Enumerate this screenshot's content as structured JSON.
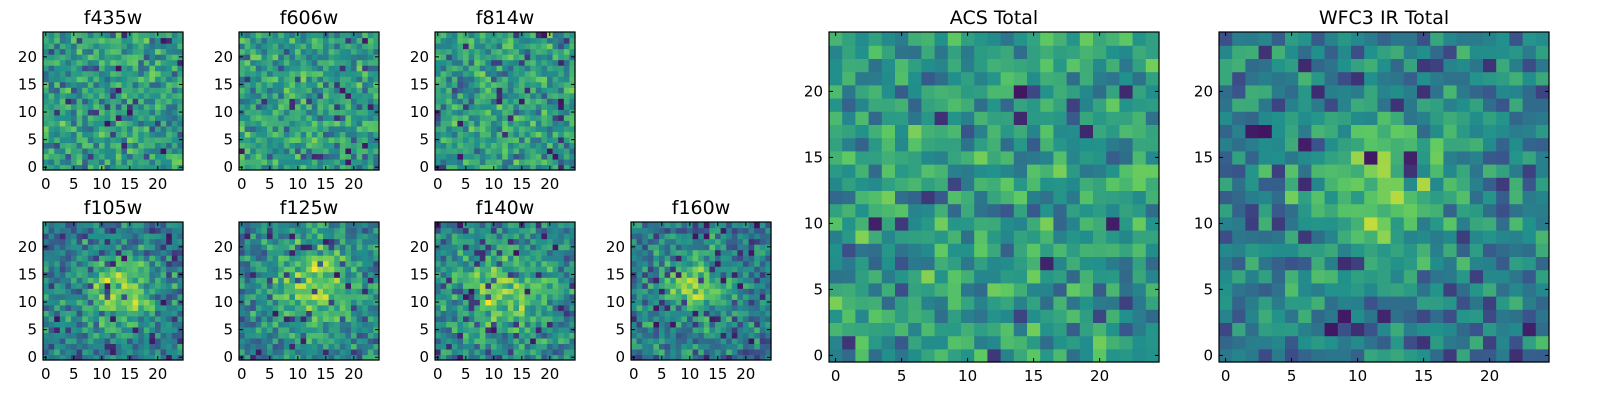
{
  "figure": {
    "colormap": "viridis",
    "colormap_stops": [
      "#440154",
      "#3b528b",
      "#21918c",
      "#5ec962",
      "#fde725"
    ]
  },
  "chart_data": [
    {
      "type": "heatmap",
      "title": "f435w",
      "grid_size": [
        25,
        25
      ],
      "xticks": [
        0,
        5,
        10,
        15,
        20
      ],
      "yticks": [
        0,
        5,
        10,
        15,
        20
      ],
      "xlim": [
        -0.5,
        24.5
      ],
      "ylim": [
        -0.5,
        24.5
      ]
    },
    {
      "type": "heatmap",
      "title": "f606w",
      "grid_size": [
        25,
        25
      ],
      "xticks": [
        0,
        5,
        10,
        15,
        20
      ],
      "yticks": [
        0,
        5,
        10,
        15,
        20
      ],
      "xlim": [
        -0.5,
        24.5
      ],
      "ylim": [
        -0.5,
        24.5
      ]
    },
    {
      "type": "heatmap",
      "title": "f814w",
      "grid_size": [
        25,
        25
      ],
      "xticks": [
        0,
        5,
        10,
        15,
        20
      ],
      "yticks": [
        0,
        5,
        10,
        15,
        20
      ],
      "xlim": [
        -0.5,
        24.5
      ],
      "ylim": [
        -0.5,
        24.5
      ]
    },
    {
      "type": "heatmap",
      "title": "f105w",
      "grid_size": [
        25,
        25
      ],
      "xticks": [
        0,
        5,
        10,
        15,
        20
      ],
      "yticks": [
        0,
        5,
        10,
        15,
        20
      ],
      "xlim": [
        -0.5,
        24.5
      ],
      "ylim": [
        -0.5,
        24.5
      ]
    },
    {
      "type": "heatmap",
      "title": "f125w",
      "grid_size": [
        25,
        25
      ],
      "xticks": [
        0,
        5,
        10,
        15,
        20
      ],
      "yticks": [
        0,
        5,
        10,
        15,
        20
      ],
      "xlim": [
        -0.5,
        24.5
      ],
      "ylim": [
        -0.5,
        24.5
      ]
    },
    {
      "type": "heatmap",
      "title": "f140w",
      "grid_size": [
        25,
        25
      ],
      "xticks": [
        0,
        5,
        10,
        15,
        20
      ],
      "yticks": [
        0,
        5,
        10,
        15,
        20
      ],
      "xlim": [
        -0.5,
        24.5
      ],
      "ylim": [
        -0.5,
        24.5
      ]
    },
    {
      "type": "heatmap",
      "title": "f160w",
      "grid_size": [
        25,
        25
      ],
      "xticks": [
        0,
        5,
        10,
        15,
        20
      ],
      "yticks": [
        0,
        5,
        10,
        15,
        20
      ],
      "xlim": [
        -0.5,
        24.5
      ],
      "ylim": [
        -0.5,
        24.5
      ]
    },
    {
      "type": "heatmap",
      "title": "ACS Total",
      "grid_size": [
        25,
        25
      ],
      "xticks": [
        0,
        5,
        10,
        15,
        20
      ],
      "yticks": [
        0,
        5,
        10,
        15,
        20
      ],
      "xlim": [
        -0.5,
        24.5
      ],
      "ylim": [
        -0.5,
        24.5
      ]
    },
    {
      "type": "heatmap",
      "title": "WFC3 IR Total",
      "grid_size": [
        25,
        25
      ],
      "xticks": [
        0,
        5,
        10,
        15,
        20
      ],
      "yticks": [
        0,
        5,
        10,
        15,
        20
      ],
      "xlim": [
        -0.5,
        24.5
      ],
      "ylim": [
        -0.5,
        24.5
      ]
    }
  ]
}
